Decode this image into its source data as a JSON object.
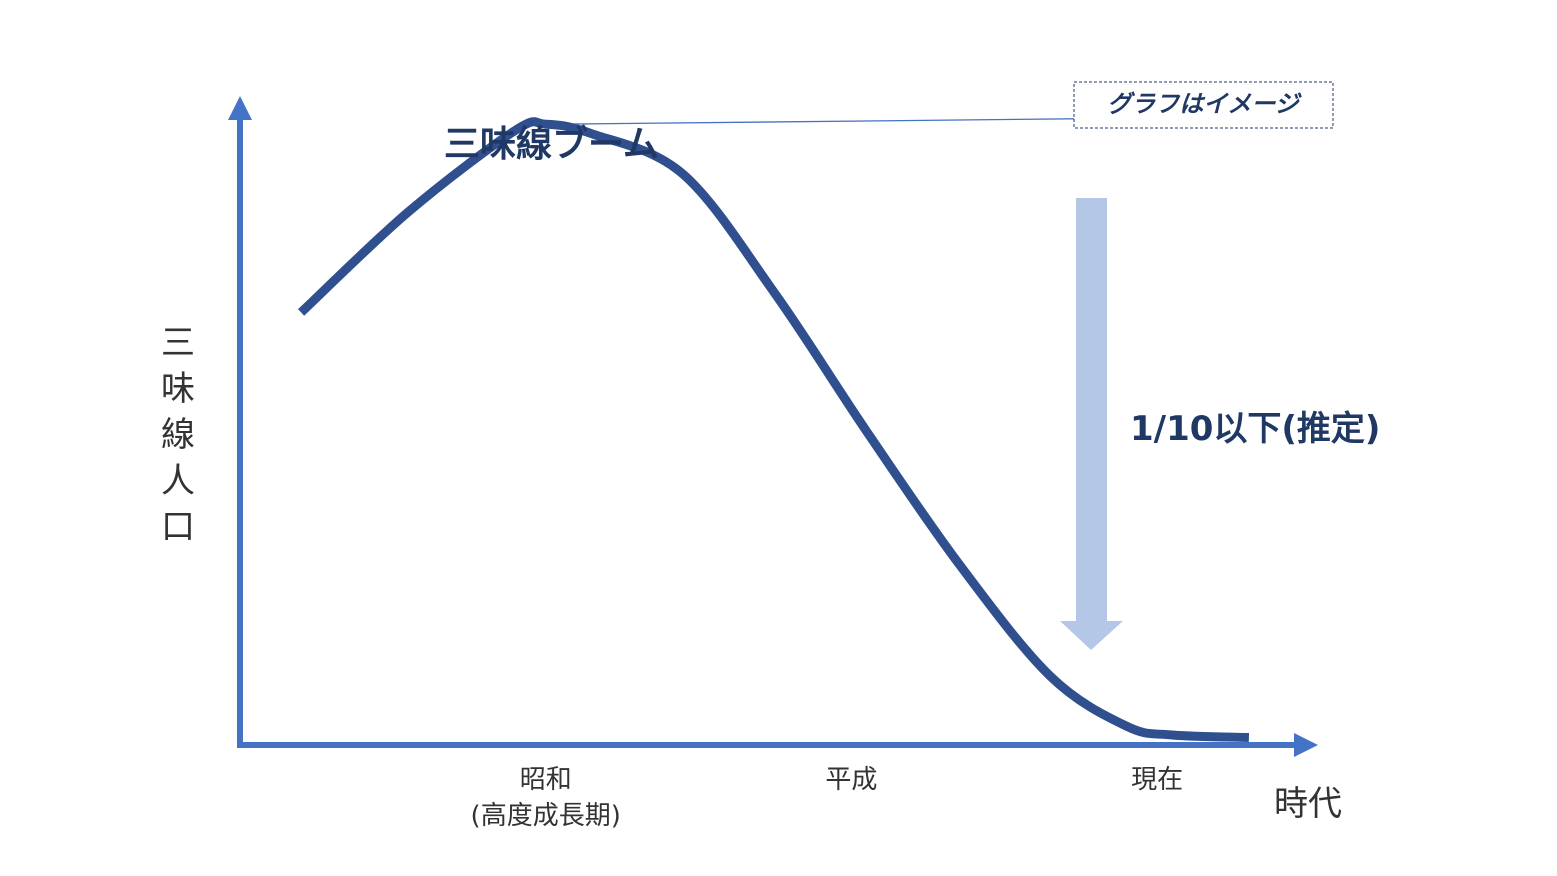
{
  "chart_data": {
    "type": "line",
    "title": "",
    "xlabel": "時代",
    "ylabel": "三味線人口",
    "badge": "グラフはイメージ",
    "peak_label": "三味線ブーム",
    "decline_label": "1/10以下(推定)",
    "categories": [
      {
        "name": "昭和",
        "sub": "(高度成長期)",
        "x": 1
      },
      {
        "name": "平成",
        "sub": "",
        "x": 2
      },
      {
        "name": "現在",
        "sub": "",
        "x": 3
      }
    ],
    "ylim": [
      0,
      100
    ],
    "xlim": [
      0,
      3.5
    ],
    "grid": false,
    "series": [
      {
        "name": "",
        "color": "#2f4f8f",
        "points": [
          {
            "x": 0.2,
            "y": 69
          },
          {
            "x": 0.55,
            "y": 85
          },
          {
            "x": 0.9,
            "y": 98
          },
          {
            "x": 1.0,
            "y": 99
          },
          {
            "x": 1.15,
            "y": 97.5
          },
          {
            "x": 1.45,
            "y": 91
          },
          {
            "x": 1.75,
            "y": 72
          },
          {
            "x": 2.05,
            "y": 50
          },
          {
            "x": 2.35,
            "y": 29
          },
          {
            "x": 2.65,
            "y": 11
          },
          {
            "x": 2.9,
            "y": 3
          },
          {
            "x": 3.05,
            "y": 1.6
          },
          {
            "x": 3.3,
            "y": 1.2
          }
        ]
      }
    ],
    "colors": {
      "axis": "#4472c4",
      "line": "#2f4f8f",
      "arrow_fill": "#b4c7e7",
      "label_dark": "#1f3864",
      "text": "#333333"
    }
  }
}
